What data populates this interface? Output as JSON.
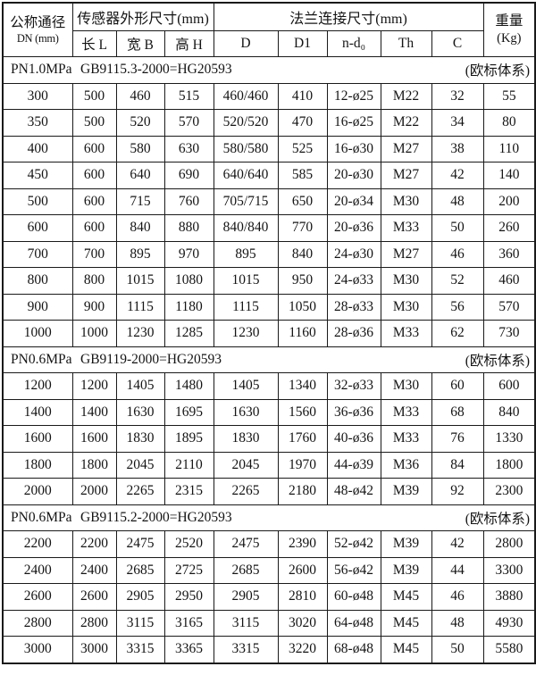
{
  "table": {
    "header": {
      "dn": {
        "line1": "公称通径",
        "line2": "DN (mm)"
      },
      "group_sensor": "传感器外形尺寸(mm)",
      "group_flange": "法兰连接尺寸(mm)",
      "weight": {
        "line1": "重量",
        "line2": "(Kg)"
      },
      "sub_columns": [
        "长 L",
        "宽 B",
        "高 H",
        "D",
        "D1",
        "n-d₀",
        "Th",
        "C"
      ]
    },
    "sections": [
      {
        "pressure": "PN1.0MPa",
        "standard": "GB9115.3-2000=HG20593",
        "note": "(欧标体系)",
        "rows": [
          [
            "300",
            "500",
            "460",
            "515",
            "460/460",
            "410",
            "12-ø25",
            "M22",
            "32",
            "55"
          ],
          [
            "350",
            "500",
            "520",
            "570",
            "520/520",
            "470",
            "16-ø25",
            "M22",
            "34",
            "80"
          ],
          [
            "400",
            "600",
            "580",
            "630",
            "580/580",
            "525",
            "16-ø30",
            "M27",
            "38",
            "110"
          ],
          [
            "450",
            "600",
            "640",
            "690",
            "640/640",
            "585",
            "20-ø30",
            "M27",
            "42",
            "140"
          ],
          [
            "500",
            "600",
            "715",
            "760",
            "705/715",
            "650",
            "20-ø34",
            "M30",
            "48",
            "200"
          ],
          [
            "600",
            "600",
            "840",
            "880",
            "840/840",
            "770",
            "20-ø36",
            "M33",
            "50",
            "260"
          ],
          [
            "700",
            "700",
            "895",
            "970",
            "895",
            "840",
            "24-ø30",
            "M27",
            "46",
            "360"
          ],
          [
            "800",
            "800",
            "1015",
            "1080",
            "1015",
            "950",
            "24-ø33",
            "M30",
            "52",
            "460"
          ],
          [
            "900",
            "900",
            "1115",
            "1180",
            "1115",
            "1050",
            "28-ø33",
            "M30",
            "56",
            "570"
          ],
          [
            "1000",
            "1000",
            "1230",
            "1285",
            "1230",
            "1160",
            "28-ø36",
            "M33",
            "62",
            "730"
          ]
        ]
      },
      {
        "pressure": "PN0.6MPa",
        "standard": "GB9119-2000=HG20593",
        "note": "(欧标体系)",
        "rows": [
          [
            "1200",
            "1200",
            "1405",
            "1480",
            "1405",
            "1340",
            "32-ø33",
            "M30",
            "60",
            "600"
          ],
          [
            "1400",
            "1400",
            "1630",
            "1695",
            "1630",
            "1560",
            "36-ø36",
            "M33",
            "68",
            "840"
          ],
          [
            "1600",
            "1600",
            "1830",
            "1895",
            "1830",
            "1760",
            "40-ø36",
            "M33",
            "76",
            "1330"
          ],
          [
            "1800",
            "1800",
            "2045",
            "2110",
            "2045",
            "1970",
            "44-ø39",
            "M36",
            "84",
            "1800"
          ],
          [
            "2000",
            "2000",
            "2265",
            "2315",
            "2265",
            "2180",
            "48-ø42",
            "M39",
            "92",
            "2300"
          ]
        ]
      },
      {
        "pressure": "PN0.6MPa",
        "standard": "GB9115.2-2000=HG20593",
        "note": "(欧标体系)",
        "rows": [
          [
            "2200",
            "2200",
            "2475",
            "2520",
            "2475",
            "2390",
            "52-ø42",
            "M39",
            "42",
            "2800"
          ],
          [
            "2400",
            "2400",
            "2685",
            "2725",
            "2685",
            "2600",
            "56-ø42",
            "M39",
            "44",
            "3300"
          ],
          [
            "2600",
            "2600",
            "2905",
            "2950",
            "2905",
            "2810",
            "60-ø48",
            "M45",
            "46",
            "3880"
          ],
          [
            "2800",
            "2800",
            "3115",
            "3165",
            "3115",
            "3020",
            "64-ø48",
            "M45",
            "48",
            "4930"
          ],
          [
            "3000",
            "3000",
            "3315",
            "3365",
            "3315",
            "3220",
            "68-ø48",
            "M45",
            "50",
            "5580"
          ]
        ]
      }
    ]
  }
}
